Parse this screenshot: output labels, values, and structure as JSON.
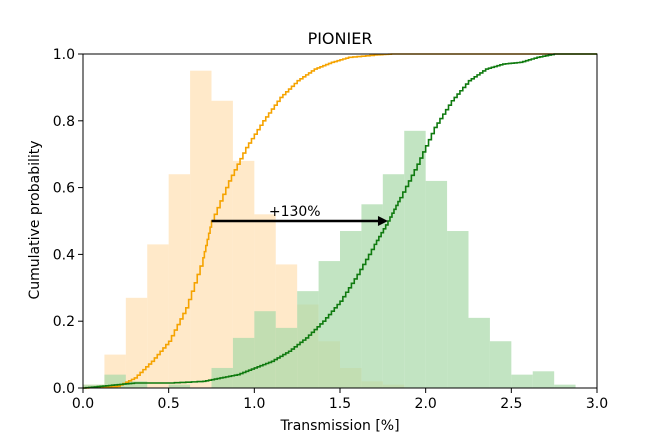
{
  "chart_data": {
    "type": "histogram+step",
    "title": "PIONIER",
    "xlabel": "Transmission [%]",
    "ylabel": "Cumulative probability",
    "xlim": [
      0.0,
      3.0
    ],
    "ylim": [
      0.0,
      1.0
    ],
    "xticks": [
      "0.0",
      "0.5",
      "1.0",
      "1.5",
      "2.0",
      "2.5",
      "3.0"
    ],
    "yticks": [
      "0.0",
      "0.2",
      "0.4",
      "0.6",
      "0.8",
      "1.0"
    ],
    "grid": false,
    "colors": {
      "orange_line": "#f5a300",
      "orange_fill": "#ffe0b2",
      "green_line": "#0f7a0f",
      "green_fill": "#a8d8a8",
      "arrow": "#000000"
    },
    "histograms": [
      {
        "color_key": "orange_fill",
        "bin_width": 0.125,
        "bins": [
          {
            "x0": 0.0,
            "height": 0.01
          },
          {
            "x0": 0.125,
            "height": 0.1
          },
          {
            "x0": 0.25,
            "height": 0.27
          },
          {
            "x0": 0.375,
            "height": 0.43
          },
          {
            "x0": 0.5,
            "height": 0.64
          },
          {
            "x0": 0.625,
            "height": 0.95
          },
          {
            "x0": 0.75,
            "height": 0.86
          },
          {
            "x0": 0.875,
            "height": 0.68
          },
          {
            "x0": 1.0,
            "height": 0.52
          },
          {
            "x0": 1.125,
            "height": 0.37
          },
          {
            "x0": 1.25,
            "height": 0.25
          },
          {
            "x0": 1.375,
            "height": 0.14
          },
          {
            "x0": 1.5,
            "height": 0.06
          },
          {
            "x0": 1.625,
            "height": 0.02
          },
          {
            "x0": 1.75,
            "height": 0.01
          }
        ]
      },
      {
        "color_key": "green_fill",
        "bin_width": 0.125,
        "bins": [
          {
            "x0": 0.0,
            "height": 0.01
          },
          {
            "x0": 0.125,
            "height": 0.04
          },
          {
            "x0": 0.25,
            "height": 0.02
          },
          {
            "x0": 0.5,
            "height": 0.01
          },
          {
            "x0": 0.75,
            "height": 0.06
          },
          {
            "x0": 0.875,
            "height": 0.15
          },
          {
            "x0": 1.0,
            "height": 0.23
          },
          {
            "x0": 1.125,
            "height": 0.18
          },
          {
            "x0": 1.25,
            "height": 0.29
          },
          {
            "x0": 1.375,
            "height": 0.38
          },
          {
            "x0": 1.5,
            "height": 0.47
          },
          {
            "x0": 1.625,
            "height": 0.55
          },
          {
            "x0": 1.75,
            "height": 0.64
          },
          {
            "x0": 1.875,
            "height": 0.77
          },
          {
            "x0": 2.0,
            "height": 0.62
          },
          {
            "x0": 2.125,
            "height": 0.47
          },
          {
            "x0": 2.25,
            "height": 0.21
          },
          {
            "x0": 2.375,
            "height": 0.14
          },
          {
            "x0": 2.5,
            "height": 0.04
          },
          {
            "x0": 2.625,
            "height": 0.05
          },
          {
            "x0": 2.75,
            "height": 0.01
          }
        ]
      }
    ],
    "series": [
      {
        "color_key": "orange_line",
        "points": [
          [
            0.0,
            0.0
          ],
          [
            0.2,
            0.005
          ],
          [
            0.3,
            0.03
          ],
          [
            0.4,
            0.08
          ],
          [
            0.5,
            0.14
          ],
          [
            0.6,
            0.24
          ],
          [
            0.7,
            0.39
          ],
          [
            0.75,
            0.5
          ],
          [
            0.85,
            0.62
          ],
          [
            0.95,
            0.72
          ],
          [
            1.05,
            0.8
          ],
          [
            1.15,
            0.87
          ],
          [
            1.25,
            0.92
          ],
          [
            1.35,
            0.955
          ],
          [
            1.45,
            0.975
          ],
          [
            1.55,
            0.99
          ],
          [
            1.7,
            0.997
          ],
          [
            1.8,
            1.0
          ],
          [
            3.0,
            1.0
          ]
        ]
      },
      {
        "color_key": "green_line",
        "points": [
          [
            0.0,
            0.0
          ],
          [
            0.1,
            0.005
          ],
          [
            0.2,
            0.01
          ],
          [
            0.3,
            0.015
          ],
          [
            0.5,
            0.015
          ],
          [
            0.7,
            0.02
          ],
          [
            0.8,
            0.03
          ],
          [
            0.9,
            0.04
          ],
          [
            1.0,
            0.06
          ],
          [
            1.1,
            0.08
          ],
          [
            1.2,
            0.11
          ],
          [
            1.3,
            0.15
          ],
          [
            1.4,
            0.2
          ],
          [
            1.5,
            0.26
          ],
          [
            1.6,
            0.34
          ],
          [
            1.7,
            0.43
          ],
          [
            1.78,
            0.5
          ],
          [
            1.85,
            0.57
          ],
          [
            1.95,
            0.67
          ],
          [
            2.05,
            0.78
          ],
          [
            2.15,
            0.86
          ],
          [
            2.25,
            0.92
          ],
          [
            2.35,
            0.955
          ],
          [
            2.45,
            0.97
          ],
          [
            2.55,
            0.975
          ],
          [
            2.65,
            0.99
          ],
          [
            2.75,
            1.0
          ],
          [
            3.0,
            1.0
          ]
        ]
      }
    ],
    "annotations": [
      {
        "text": "+130%",
        "x_start": 0.75,
        "x_end": 1.78,
        "y": 0.5
      }
    ]
  }
}
